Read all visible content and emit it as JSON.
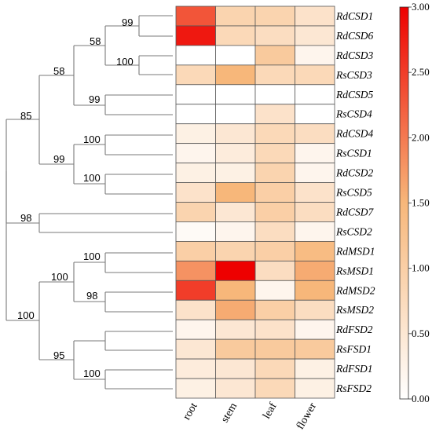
{
  "chart_data": {
    "type": "heatmap",
    "rows": [
      "RdCSD1",
      "RdCSD6",
      "RdCSD3",
      "RsCSD3",
      "RdCSD5",
      "RsCSD4",
      "RdCSD4",
      "RsCSD1",
      "RdCSD2",
      "RsCSD5",
      "RdCSD7",
      "RsCSD2",
      "RdMSD1",
      "RsMSD1",
      "RdMSD2",
      "RsMSD2",
      "RdFSD2",
      "RsFSD1",
      "RdFSD1",
      "RsFSD2"
    ],
    "columns": [
      "root",
      "stem",
      "leaf",
      "flower"
    ],
    "values": [
      [
        2.3,
        0.9,
        0.9,
        0.6
      ],
      [
        2.8,
        0.8,
        0.7,
        0.5
      ],
      [
        0.0,
        0.0,
        1.1,
        0.2
      ],
      [
        0.8,
        1.5,
        0.8,
        0.8
      ],
      [
        0.0,
        0.0,
        0.0,
        0.0
      ],
      [
        0.0,
        0.0,
        0.6,
        0.0
      ],
      [
        0.3,
        0.5,
        0.8,
        0.7
      ],
      [
        0.2,
        0.4,
        0.8,
        0.2
      ],
      [
        0.3,
        0.3,
        0.9,
        0.2
      ],
      [
        0.6,
        1.5,
        1.0,
        0.6
      ],
      [
        0.9,
        0.5,
        1.0,
        0.7
      ],
      [
        0.1,
        0.2,
        0.7,
        0.2
      ],
      [
        1.0,
        0.9,
        1.0,
        1.4
      ],
      [
        1.8,
        3.0,
        0.7,
        1.6
      ],
      [
        2.5,
        1.5,
        0.2,
        1.5
      ],
      [
        0.6,
        1.6,
        1.0,
        0.7
      ],
      [
        0.2,
        0.5,
        0.6,
        0.2
      ],
      [
        0.5,
        1.1,
        1.1,
        1.1
      ],
      [
        0.4,
        0.5,
        0.8,
        0.3
      ],
      [
        0.3,
        0.5,
        0.8,
        0.3
      ]
    ],
    "colorbar": {
      "min": 0.0,
      "max": 3.0,
      "ticks": [
        "0.00",
        "0.50",
        "1.00",
        "1.50",
        "2.00",
        "2.50",
        "3.00"
      ],
      "colors": [
        "#ffffff",
        "#f7b77a",
        "#ee0000"
      ]
    },
    "tree": {
      "bootstrap_labels": [
        "99",
        "58",
        "100",
        "58",
        "99",
        "85",
        "100",
        "99",
        "100",
        "98",
        "100",
        "100",
        "98",
        "100",
        "95",
        "100"
      ]
    }
  }
}
